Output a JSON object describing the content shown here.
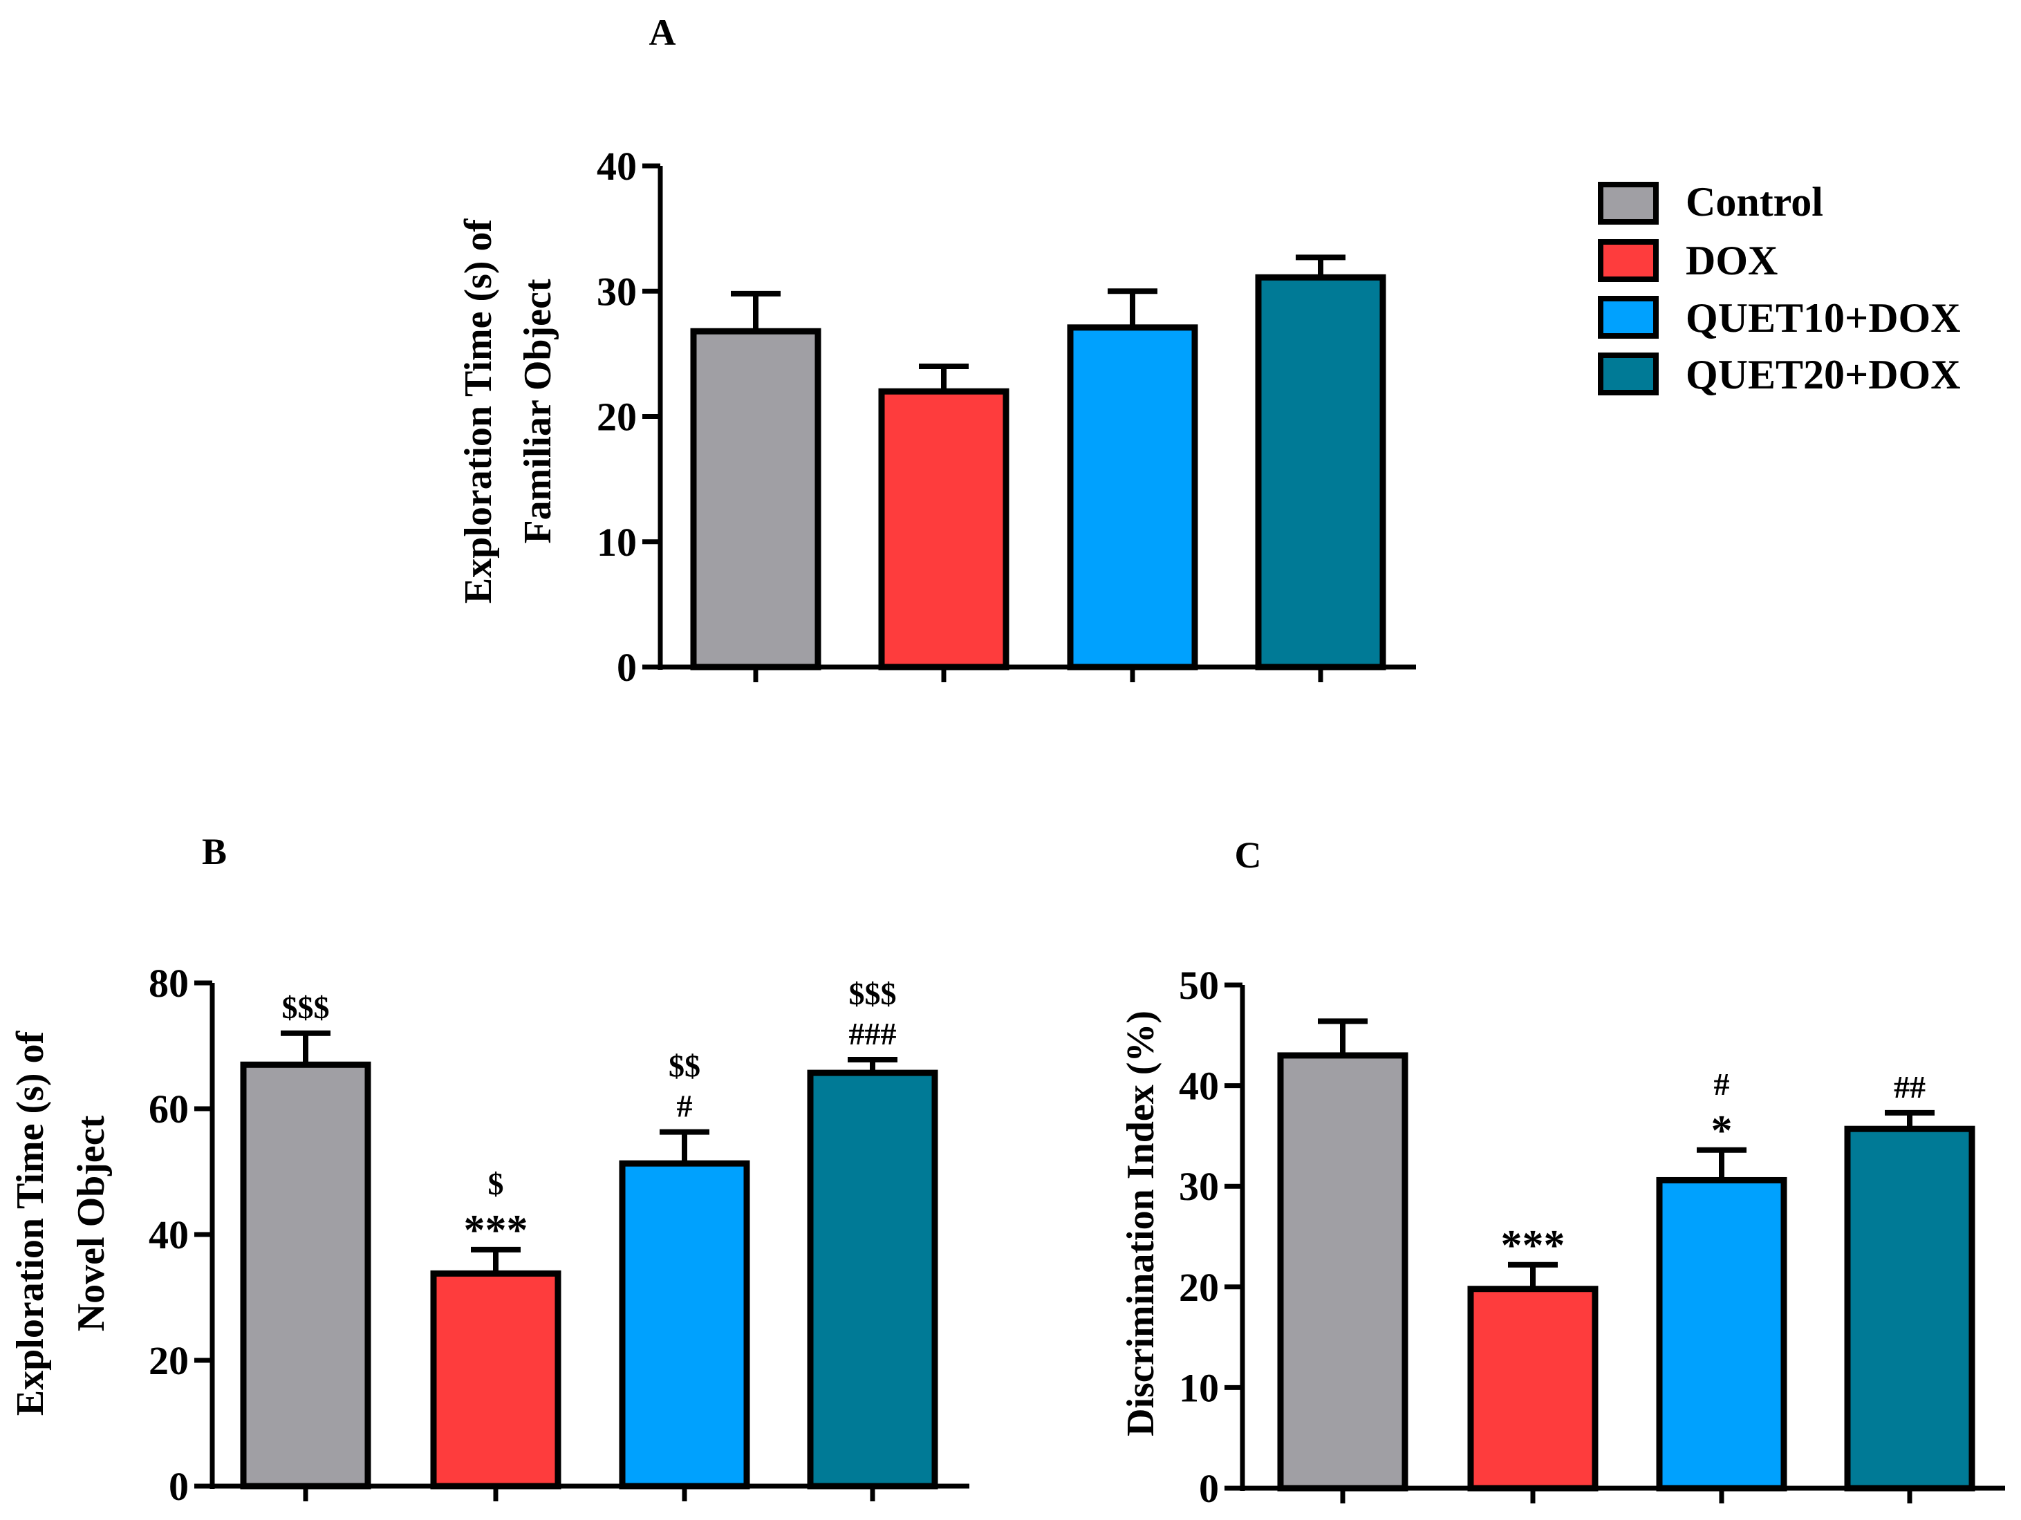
{
  "legend": {
    "items": [
      {
        "label": "Control",
        "color": "#a09fa4"
      },
      {
        "label": "DOX",
        "color": "#fe3c3d"
      },
      {
        "label": "QUET10+DOX",
        "color": "#00a1fe"
      },
      {
        "label": "QUET20+DOX",
        "color": "#007a96"
      }
    ]
  },
  "chart_data": [
    {
      "type": "bar",
      "panel_label": "A",
      "ylabel_line1": "Exploration Time (s) of",
      "ylabel_line2": "Familiar Object",
      "ylim": [
        0,
        40
      ],
      "yticks": [
        "0",
        "10",
        "20",
        "30",
        "40"
      ],
      "categories": [
        "Control",
        "DOX",
        "QUET10+DOX",
        "QUET20+DOX"
      ],
      "values": [
        26.8,
        22.0,
        27.1,
        31.1
      ],
      "errors": [
        3.0,
        2.0,
        2.9,
        1.6
      ],
      "annotations": [
        [],
        [],
        [],
        []
      ]
    },
    {
      "type": "bar",
      "panel_label": "B",
      "ylabel_line1": "Exploration Time (s) of",
      "ylabel_line2": "Novel Object",
      "ylim": [
        0,
        80
      ],
      "yticks": [
        "0",
        "20",
        "40",
        "60",
        "80"
      ],
      "categories": [
        "Control",
        "DOX",
        "QUET10+DOX",
        "QUET20+DOX"
      ],
      "values": [
        67.0,
        33.8,
        51.3,
        65.7
      ],
      "errors": [
        5.0,
        3.8,
        5.0,
        2.1
      ],
      "annotations": [
        [
          "$$$"
        ],
        [
          "$",
          "***"
        ],
        [
          "$$",
          "#"
        ],
        [
          "$$$",
          "###"
        ]
      ]
    },
    {
      "type": "bar",
      "panel_label": "C",
      "ylabel_line1": "Discrimination Index (%)",
      "ylabel_line2": "",
      "ylim": [
        0,
        50
      ],
      "yticks": [
        "0",
        "10",
        "20",
        "30",
        "40",
        "50"
      ],
      "categories": [
        "Control",
        "DOX",
        "QUET10+DOX",
        "QUET20+DOX"
      ],
      "values": [
        43.0,
        19.8,
        30.6,
        35.7
      ],
      "errors": [
        3.4,
        2.4,
        3.0,
        1.6
      ],
      "annotations": [
        [],
        [
          "***"
        ],
        [
          "#",
          "*"
        ],
        [
          "##"
        ]
      ]
    }
  ]
}
